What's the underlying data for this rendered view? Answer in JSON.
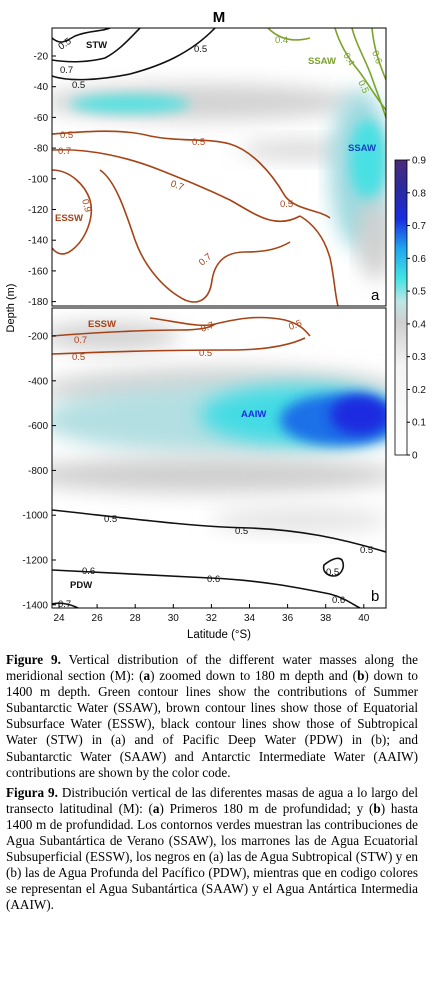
{
  "figure": {
    "section_label": "M",
    "panel_a_label": "a",
    "panel_b_label": "b",
    "y_axis_label": "Depth (m)",
    "x_axis_label": "Latitude (°S)",
    "x_ticks": [
      "24",
      "26",
      "28",
      "30",
      "32",
      "34",
      "36",
      "38",
      "40"
    ],
    "panel_a_y_ticks": [
      "-20",
      "-40",
      "-60",
      "-80",
      "-100",
      "-120",
      "-140",
      "-160",
      "-180"
    ],
    "panel_b_y_ticks": [
      "-200",
      "-400",
      "-600",
      "-800",
      "-1000",
      "-1200",
      "-1400"
    ],
    "colorbar_ticks": [
      "0.9",
      "0.8",
      "0.7",
      "0.6",
      "0.5",
      "0.4",
      "0.3",
      "0.2",
      "0.1",
      "0"
    ],
    "water_masses": {
      "stw": "STW",
      "ssaw_top": "SSAW",
      "ssaw": "SSAW",
      "essw_a": "ESSW",
      "essw_b": "ESSW",
      "aaiw": "AAIW",
      "pdw": "PDW"
    },
    "contour_labels": {
      "a_stw_05_left": "0.5",
      "a_stw_07": "0.7",
      "a_stw_05_low": "0.5",
      "a_stw_05_right": "0.5",
      "a_ssaw_04": "0.4",
      "a_ssaw_04b": "0.4",
      "a_ssaw_05": "0.5",
      "a_ssaw_06": "0.6",
      "a_essw_05": "0.5",
      "a_essw_07": "0.7",
      "a_essw_05_mid": "0.5",
      "a_essw_07_mid": "0.7",
      "a_essw_09": "0.9",
      "a_essw_05_right": "0.5",
      "a_essw_07_low": "0.7",
      "b_essw_07_top": "0.7",
      "b_essw_05_top": "0.5",
      "b_essw_07": "0.7",
      "b_essw_05": "0.5",
      "b_essw_05_mid": "0.5",
      "b_pdw_05_left": "0.5",
      "b_pdw_05_mid": "0.5",
      "b_pdw_05_right": "0.5",
      "b_pdw_06_left": "0.6",
      "b_pdw_06_mid": "0.6",
      "b_pdw_06_right": "0.6",
      "b_pdw_05_small": "0.5",
      "b_pdw_07": "0.7"
    },
    "colors": {
      "stw_contour": "#111111",
      "ssaw_contour": "#7aa32b",
      "essw_contour": "#a64316",
      "colorbar_low": "#ffffff",
      "colorbar_mid_gray": "#c8c8c8",
      "colorbar_cyan": "#3fe3e3",
      "colorbar_blue": "#1a2ce0",
      "colorbar_high": "#4b2a7a"
    }
  },
  "caption_en": {
    "label": "Figure 9.",
    "text_1": " Vertical distribution of the different water masses along the meridional section (M): (",
    "a": "a",
    "text_2": ") zoomed down to 180 m depth and (",
    "b": "b",
    "text_3": ") down to 1400 m depth. Green contour lines show the contributions of Summer Subantarctic Water (SSAW), brown contour lines show those of Equatorial Subsurface Water (ESSW), black contour lines show those of Subtropical Water (STW) in (a) and of Pacific Deep Water (PDW) in (b); and Subantarctic Water (SAAW) and Antarctic Intermediate Water (AAIW) contributions are shown by the color code."
  },
  "caption_es": {
    "label": "Figura 9.",
    "text_1": " Distribución vertical de las diferentes masas de agua a lo largo del transecto latitudinal  (M): (",
    "a": "a",
    "text_2": ") Primeros 180 m de profundidad; y (",
    "b": "b",
    "text_3": ") hasta 1400 m de profundidad. Los contornos verdes muestran las contribuciones de Agua Subantártica de Verano (SSAW), los marrones las de Agua Ecuatorial Subsuperficial (ESSW), los negros en (a) las de Agua Subtropical (STW) y en (b) las de Agua Profunda del Pacífico (PDW), mientras que en codigo colores se representan el Agua Subantártica (SAAW) y el Agua Antártica Intermedia (AAIW)."
  }
}
